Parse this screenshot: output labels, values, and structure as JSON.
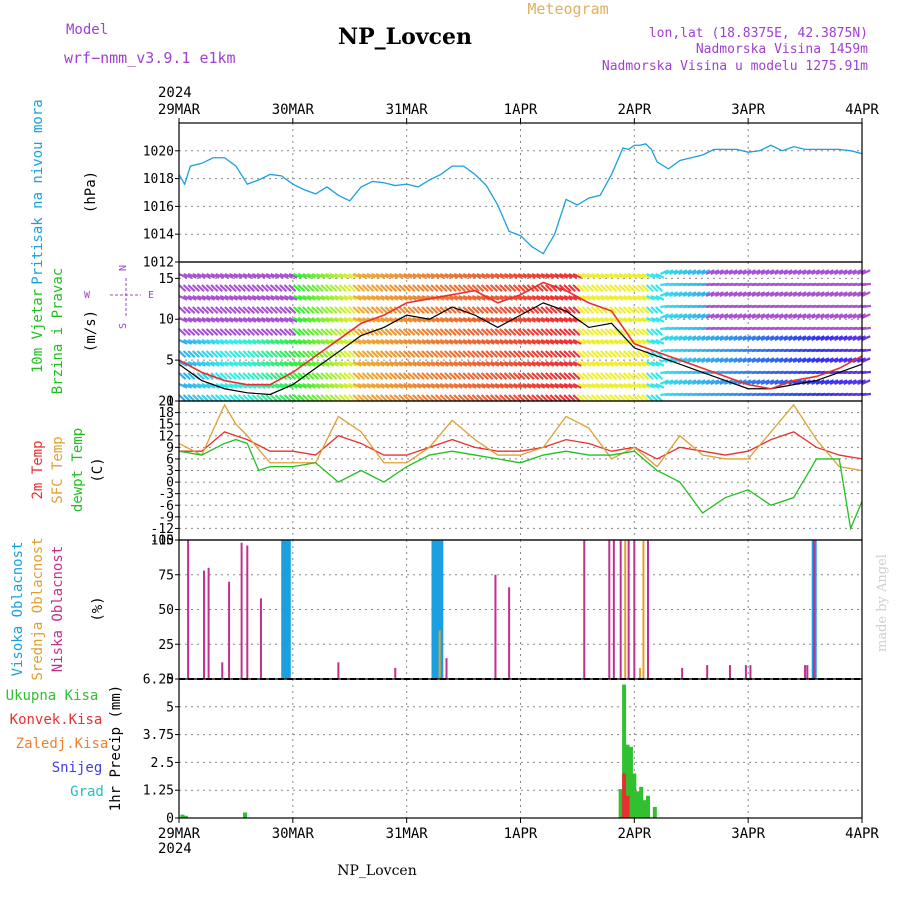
{
  "header": {
    "model_label": "Model",
    "model_name": "wrf−nmm_v3.9.1  e1km",
    "station": "NP_Lovcen",
    "meteogram": "Meteogram",
    "lonlat": "lon,lat (18.8375E, 42.3875N)",
    "elevation": "Nadmorska Visina 1459m",
    "model_elevation": "Nadmorska Visina u modelu 1275.91m"
  },
  "footer": {
    "station": "NP_Lovcen",
    "credit": "made by Angel"
  },
  "colors": {
    "pressure": "#1aa0e0",
    "wind_label": "#20c020",
    "temp2m": "#e83030",
    "sfc": "#e0a030",
    "dewpt": "#20c020",
    "high_cloud": "#1aa0e0",
    "mid_cloud": "#e0a030",
    "low_cloud": "#c03090",
    "wind_purple": "#a040d0",
    "precip_total": "#30c030",
    "precip_conv": "#e83030",
    "precip_frz": "#f08030",
    "precip_snow": "#4040e0",
    "precip_hail": "#20c0c0"
  },
  "chart_data": {
    "x_axis": {
      "year": "2024",
      "ticks": [
        "29MAR",
        "30MAR",
        "31MAR",
        "1APR",
        "2APR",
        "3APR",
        "4APR"
      ],
      "range_days": [
        0,
        6
      ]
    },
    "panels": [
      {
        "id": "pressure",
        "type": "line",
        "ylabel": "Pritisak na nivou mora",
        "unit": "(hPa)",
        "ylim": [
          1012,
          1022
        ],
        "yticks": [
          1012,
          1014,
          1016,
          1018,
          1020
        ],
        "series": [
          {
            "x": [
              0,
              0.05,
              0.1,
              0.2,
              0.3,
              0.4,
              0.5,
              0.6,
              0.7,
              0.8,
              0.9,
              1.0,
              1.1,
              1.2,
              1.3,
              1.4,
              1.5,
              1.6,
              1.7,
              1.8,
              1.9,
              2.0,
              2.1,
              2.2,
              2.3,
              2.4,
              2.5,
              2.6,
              2.7,
              2.8,
              2.9,
              3.0,
              3.1,
              3.2,
              3.3,
              3.4,
              3.5,
              3.6,
              3.7,
              3.8,
              3.9,
              3.95,
              4.0,
              4.05,
              4.1,
              4.15,
              4.2,
              4.3,
              4.4,
              4.5,
              4.6,
              4.7,
              4.8,
              4.9,
              5.0,
              5.1,
              5.2,
              5.3,
              5.4,
              5.5,
              5.6,
              5.7,
              5.8,
              5.9,
              6.0
            ],
            "y": [
              1018.3,
              1017.6,
              1018.9,
              1019.1,
              1019.5,
              1019.5,
              1018.9,
              1017.6,
              1017.9,
              1018.3,
              1018.2,
              1017.6,
              1017.2,
              1016.9,
              1017.4,
              1016.8,
              1016.4,
              1017.4,
              1017.8,
              1017.7,
              1017.5,
              1017.6,
              1017.4,
              1017.9,
              1018.3,
              1018.9,
              1018.9,
              1018.3,
              1017.5,
              1016.1,
              1014.2,
              1013.9,
              1013.1,
              1012.6,
              1014.0,
              1016.5,
              1016.1,
              1016.6,
              1016.8,
              1018.3,
              1020.2,
              1020.1,
              1020.4,
              1020.4,
              1020.5,
              1020.1,
              1019.2,
              1018.7,
              1019.3,
              1019.5,
              1019.7,
              1020.1,
              1020.1,
              1020.1,
              1019.9,
              1020.0,
              1020.4,
              1020.0,
              1020.3,
              1020.1,
              1020.1,
              1020.1,
              1020.1,
              1020.0,
              1019.8
            ]
          }
        ]
      },
      {
        "id": "wind",
        "type": "line",
        "ylabel_1": "10m Vjetar",
        "ylabel_2": "Brzina i Pravac",
        "unit": "(m/s)",
        "compass": [
          "N",
          "W",
          "E",
          "S"
        ],
        "ylim": [
          0,
          17
        ],
        "yticks": [
          0,
          5,
          10,
          15
        ],
        "series": [
          {
            "name": "speed",
            "x": [
              0,
              0.2,
              0.4,
              0.6,
              0.8,
              1.0,
              1.2,
              1.4,
              1.6,
              1.8,
              2.0,
              2.2,
              2.4,
              2.6,
              2.8,
              3.0,
              3.2,
              3.4,
              3.6,
              3.8,
              4.0,
              4.2,
              4.4,
              4.6,
              4.8,
              5.0,
              5.2,
              5.4,
              5.6,
              5.8,
              6.0
            ],
            "y": [
              4.5,
              2.5,
              1.5,
              1.0,
              0.8,
              2.0,
              4.0,
              6.0,
              8.0,
              9.0,
              10.5,
              10.0,
              11.5,
              10.5,
              9.0,
              10.5,
              12.0,
              11.0,
              9.0,
              9.5,
              6.5,
              5.5,
              4.5,
              3.5,
              2.5,
              1.5,
              1.5,
              2.0,
              2.5,
              3.5,
              4.5
            ]
          },
          {
            "name": "gust",
            "x": [
              0,
              0.2,
              0.4,
              0.6,
              0.8,
              1.0,
              1.2,
              1.4,
              1.6,
              1.8,
              2.0,
              2.2,
              2.4,
              2.6,
              2.8,
              3.0,
              3.2,
              3.4,
              3.6,
              3.8,
              4.0,
              4.2,
              4.4,
              4.6,
              4.8,
              5.0,
              5.2,
              5.4,
              5.6,
              5.8,
              6.0
            ],
            "y": [
              5.0,
              3.5,
              2.5,
              2.0,
              2.0,
              3.5,
              5.5,
              7.5,
              9.5,
              10.5,
              12.0,
              12.5,
              13.0,
              13.5,
              12.0,
              13.0,
              14.5,
              13.5,
              12.0,
              11.0,
              7.0,
              6.0,
              5.0,
              4.0,
              3.0,
              2.0,
              1.5,
              2.5,
              3.0,
              4.0,
              5.5
            ]
          }
        ]
      },
      {
        "id": "temperature",
        "type": "line",
        "ylabel_1": "2m Temp",
        "ylabel_2": "SFC Temp",
        "ylabel_3": "dewpt Temp",
        "unit": "(C)",
        "ylim": [
          -15,
          21
        ],
        "yticks": [
          -15,
          -12,
          -9,
          -6,
          -3,
          0,
          3,
          6,
          9,
          12,
          15,
          18,
          21
        ],
        "series": [
          {
            "name": "2m Temp",
            "x": [
              0,
              0.2,
              0.4,
              0.5,
              0.6,
              0.8,
              1.0,
              1.2,
              1.4,
              1.6,
              1.8,
              2.0,
              2.2,
              2.4,
              2.6,
              2.8,
              3.0,
              3.2,
              3.4,
              3.6,
              3.8,
              4.0,
              4.2,
              4.4,
              4.6,
              4.8,
              5.0,
              5.2,
              5.4,
              5.6,
              5.8,
              6.0
            ],
            "y": [
              8,
              8,
              13,
              12,
              11,
              8,
              8,
              7,
              12,
              10,
              7,
              7,
              9,
              11,
              9,
              8,
              8,
              9,
              11,
              10,
              8,
              9,
              6,
              9,
              8,
              7,
              8,
              11,
              13,
              9,
              7,
              6
            ]
          },
          {
            "name": "SFC Temp",
            "x": [
              0,
              0.2,
              0.4,
              0.5,
              0.6,
              0.8,
              1.0,
              1.2,
              1.4,
              1.6,
              1.8,
              2.0,
              2.2,
              2.4,
              2.6,
              2.8,
              3.0,
              3.2,
              3.4,
              3.6,
              3.8,
              4.0,
              4.2,
              4.4,
              4.6,
              4.8,
              5.0,
              5.2,
              5.4,
              5.6,
              5.8,
              6.0
            ],
            "y": [
              10,
              7,
              20,
              15,
              12,
              5,
              5,
              5,
              17,
              13,
              5,
              5,
              9,
              16,
              11,
              7,
              7,
              9,
              17,
              14,
              6,
              9,
              4,
              12,
              7,
              6,
              6,
              13,
              20,
              11,
              4,
              3
            ]
          },
          {
            "name": "dewpt Temp",
            "x": [
              0,
              0.2,
              0.4,
              0.5,
              0.6,
              0.7,
              0.8,
              1.0,
              1.2,
              1.4,
              1.6,
              1.8,
              2.0,
              2.2,
              2.4,
              2.6,
              2.8,
              3.0,
              3.2,
              3.4,
              3.6,
              3.8,
              4.0,
              4.2,
              4.4,
              4.6,
              4.8,
              5.0,
              5.2,
              5.4,
              5.6,
              5.8,
              5.9,
              6.0
            ],
            "y": [
              8,
              7,
              10,
              11,
              10,
              3,
              4,
              4,
              5,
              0,
              3,
              0,
              4,
              7,
              8,
              7,
              6,
              5,
              7,
              8,
              7,
              7,
              8,
              3,
              0,
              -8,
              -4,
              -2,
              -6,
              -4,
              6,
              6,
              -12,
              -5
            ]
          }
        ]
      },
      {
        "id": "cloud",
        "type": "bar",
        "ylabel_1": "Visoka Oblacnost",
        "ylabel_2": "Srednja Oblacnost",
        "ylabel_3": "Niska Oblacnost",
        "unit": "(%)",
        "ylim": [
          0,
          100
        ],
        "yticks": [
          0,
          25,
          50,
          75,
          100
        ],
        "series": [
          {
            "name": "Visoka Oblacnost",
            "x": [
              0.92,
              0.94,
              0.96,
              2.24,
              2.26,
              2.28,
              2.3,
              5.58
            ],
            "y": [
              100,
              100,
              100,
              100,
              100,
              100,
              100,
              100
            ]
          },
          {
            "name": "Srednja Oblacnost",
            "x": [
              2.29,
              3.92,
              4.05,
              4.08
            ],
            "y": [
              35,
              100,
              8,
              100
            ]
          },
          {
            "name": "Niska Oblacnost",
            "x": [
              0.08,
              0.22,
              0.26,
              0.38,
              0.44,
              0.55,
              0.6,
              0.72,
              1.4,
              1.9,
              2.35,
              2.78,
              2.9,
              3.56,
              3.78,
              3.82,
              3.88,
              3.95,
              4.0,
              4.12,
              4.42,
              4.64,
              4.84,
              4.98,
              5.02,
              5.5,
              5.52,
              5.58
            ],
            "y": [
              100,
              78,
              80,
              12,
              70,
              98,
              96,
              58,
              12,
              8,
              15,
              75,
              66,
              100,
              100,
              100,
              100,
              100,
              100,
              100,
              8,
              10,
              10,
              10,
              10,
              10,
              10,
              100
            ]
          }
        ]
      },
      {
        "id": "precip",
        "type": "bar",
        "ylabel": "1hr Precip (mm)",
        "legend": [
          "Ukupna Kisa",
          "Konvek.Kisa",
          "Zaledj.Kisa",
          "Snijeg",
          "Grad"
        ],
        "ylim": [
          0,
          6.25
        ],
        "yticks": [
          0,
          1.25,
          2.5,
          3.75,
          5,
          6.25
        ],
        "series": [
          {
            "name": "Ukupna Kisa",
            "x": [
              0.03,
              0.06,
              0.58,
              3.88,
              3.91,
              3.94,
              3.97,
              4.0,
              4.03,
              4.06,
              4.09,
              4.12,
              4.18
            ],
            "y": [
              0.15,
              0.1,
              0.25,
              1.3,
              6.0,
              3.3,
              3.2,
              2.0,
              1.2,
              1.4,
              0.8,
              1.0,
              0.5
            ]
          },
          {
            "name": "Konvek.Kisa",
            "x": [
              3.91,
              3.94
            ],
            "y": [
              2.0,
              1.0
            ]
          }
        ]
      }
    ]
  }
}
